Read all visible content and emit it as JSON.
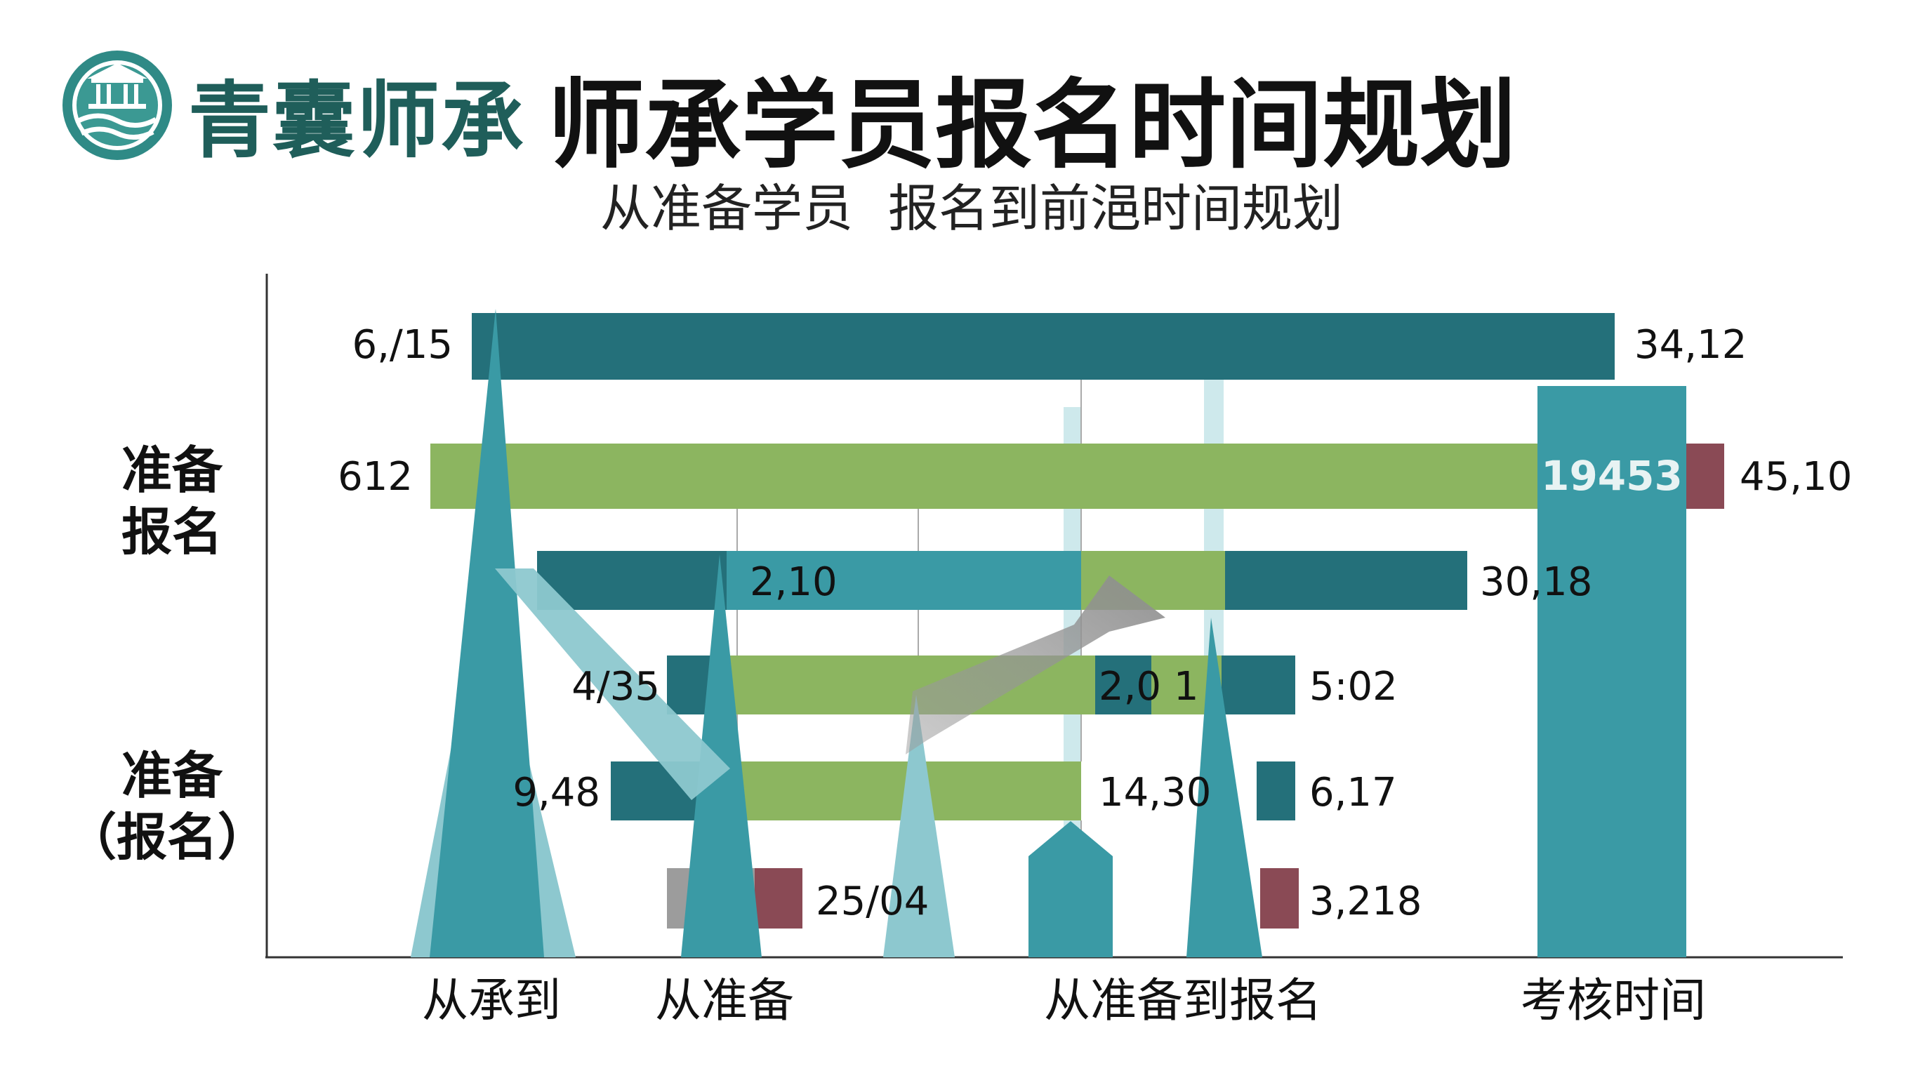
{
  "logo": {
    "brand": "青囊师承"
  },
  "title": "师承学员报名时间规划",
  "subtitle": [
    "从准备学员",
    "报名到前浥时间规划"
  ],
  "colors": {
    "teal_dark": "#24707a",
    "teal": "#3a9aa5",
    "teal_light": "#8dc8cf",
    "green": "#8cb560",
    "maroon": "#8a4a55",
    "gray": "#9c9c9c",
    "brand": "#1f5e5a"
  },
  "chart_data": {
    "type": "bar",
    "title": "",
    "y_group_labels": [
      [
        "准备",
        "报名"
      ],
      [
        "准备",
        "（报名）"
      ]
    ],
    "x_category_labels": [
      "从承到",
      "从准备",
      "从准备到报名",
      "考核时间"
    ],
    "rows": [
      {
        "start_label": "6,/15",
        "end_label": "34,12",
        "series": "teal",
        "start": 6,
        "end": 34
      },
      {
        "start_label": "612",
        "end_label": "45,10",
        "inner_label": "19453",
        "series": "green",
        "start": 4,
        "end": 45
      },
      {
        "start_label": "2,10",
        "end_label": "30,18",
        "series": "teal",
        "start": 7,
        "end": 30
      },
      {
        "start_label": "4/35",
        "end_label": "5:02",
        "inner_label": "2,0 1",
        "series": "teal+green",
        "start": 11,
        "end": 27
      },
      {
        "start_label": "9,48",
        "end_label": "6,17",
        "inner_label": "14,30",
        "series": "teal+green",
        "start": 9,
        "end": 27
      },
      {
        "start_label": "",
        "end_label": "3,218",
        "inner_label": "25/04",
        "series": "gray+maroon",
        "start": 10,
        "end": 27
      }
    ]
  }
}
